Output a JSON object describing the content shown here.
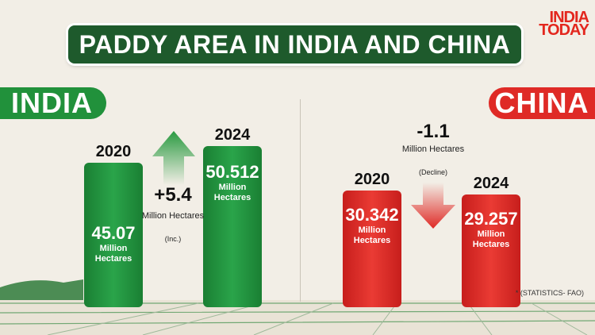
{
  "title": "PADDY AREA IN INDIA AND CHINA",
  "logo": {
    "line1": "INDIA",
    "line2": "TODAY"
  },
  "source_note": "* (STATISTICS- FAO)",
  "colors": {
    "india": "#21913b",
    "china": "#df2a26",
    "title_bg": "#1e5a2c",
    "background": "#f2eee6"
  },
  "chart_data": [
    {
      "type": "bar",
      "title": "INDIA",
      "categories": [
        "2020",
        "2024"
      ],
      "values": [
        45.07,
        50.512
      ],
      "value_labels": [
        "45.07",
        "50.512"
      ],
      "unit_label": "Million Hectares",
      "change": {
        "value": "+5.4",
        "unit": "Million Hectares",
        "note": "(Inc.)",
        "direction": "up"
      }
    },
    {
      "type": "bar",
      "title": "CHINA",
      "categories": [
        "2020",
        "2024"
      ],
      "values": [
        30.342,
        29.257
      ],
      "value_labels": [
        "30.342",
        "29.257"
      ],
      "unit_label": "Million Hectares",
      "change": {
        "value": "-1.1",
        "unit": "Million Hectares",
        "note": "(Decline)",
        "direction": "down"
      }
    }
  ]
}
